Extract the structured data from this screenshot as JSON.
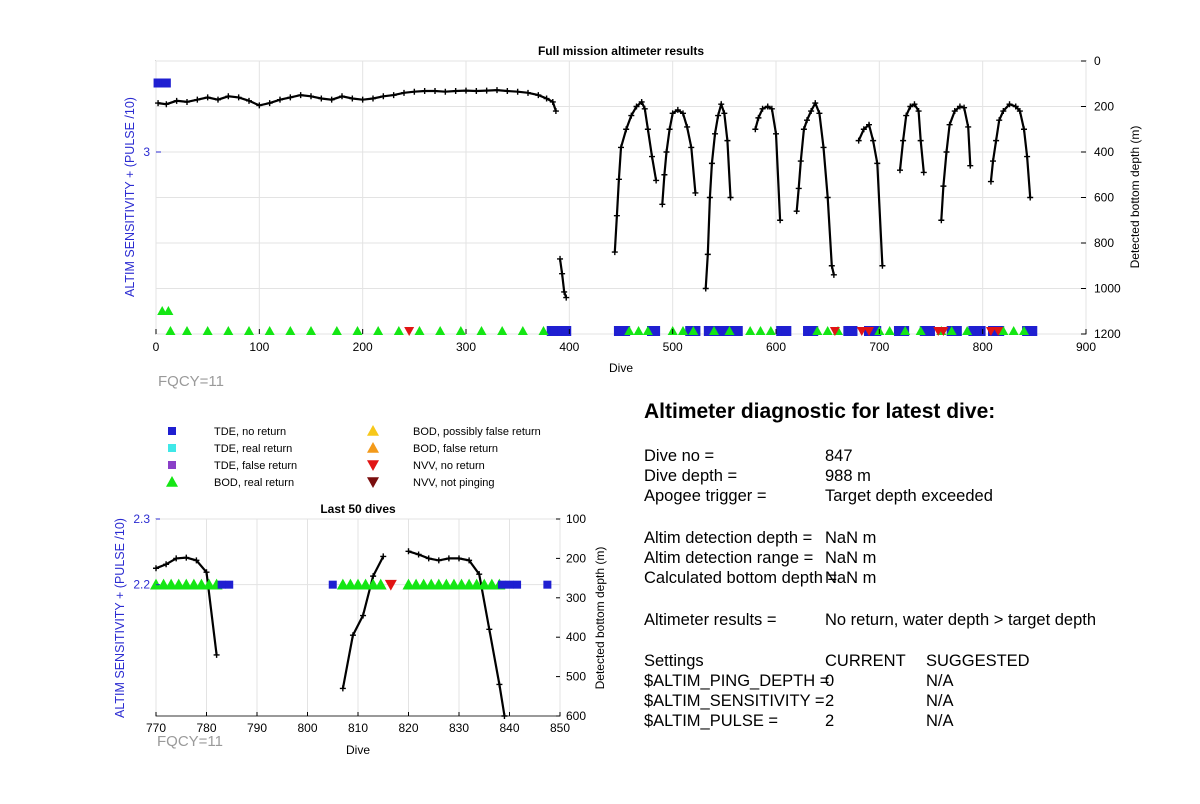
{
  "chart_data": [
    {
      "type": "line",
      "title": "Full mission altimeter results",
      "xlabel": "Dive",
      "ylabel_left": "ALTIM SENSITIVITY + (PULSE /10)",
      "ylabel_right": "Detected bottom depth (m)",
      "xlim": [
        0,
        900
      ],
      "xticks": [
        "0",
        "100",
        "200",
        "300",
        "400",
        "500",
        "600",
        "700",
        "800",
        "900"
      ],
      "yticks_left": [
        "3"
      ],
      "yticks_right": [
        "0",
        "200",
        "400",
        "600",
        "800",
        "1000",
        "1200"
      ],
      "ylim_right": [
        0,
        1200
      ],
      "grid": true,
      "footnote": "FQCY=11",
      "series": [
        {
          "name": "Detected bottom depth",
          "segments": [
            [
              [
                2,
                185
              ],
              [
                10,
                190
              ],
              [
                20,
                175
              ],
              [
                30,
                180
              ],
              [
                40,
                170
              ],
              [
                50,
                160
              ],
              [
                60,
                170
              ],
              [
                70,
                155
              ],
              [
                80,
                160
              ],
              [
                90,
                175
              ],
              [
                100,
                195
              ],
              [
                110,
                185
              ],
              [
                120,
                170
              ],
              [
                130,
                160
              ],
              [
                140,
                150
              ],
              [
                150,
                155
              ],
              [
                160,
                165
              ],
              [
                170,
                170
              ],
              [
                180,
                155
              ],
              [
                190,
                165
              ],
              [
                200,
                170
              ],
              [
                210,
                165
              ],
              [
                220,
                155
              ],
              [
                230,
                150
              ],
              [
                240,
                140
              ],
              [
                250,
                135
              ],
              [
                260,
                132
              ],
              [
                270,
                132
              ],
              [
                280,
                135
              ],
              [
                290,
                132
              ],
              [
                300,
                130
              ],
              [
                310,
                132
              ],
              [
                320,
                130
              ],
              [
                330,
                128
              ],
              [
                340,
                132
              ],
              [
                350,
                135
              ],
              [
                360,
                140
              ],
              [
                370,
                150
              ],
              [
                378,
                165
              ],
              [
                384,
                180
              ],
              [
                387,
                220
              ]
            ],
            [
              [
                391,
                870
              ],
              [
                393,
                935
              ],
              [
                395,
                1015
              ],
              [
                397,
                1040
              ]
            ],
            [
              [
                444,
                840
              ],
              [
                446,
                680
              ],
              [
                448,
                520
              ],
              [
                450,
                380
              ],
              [
                455,
                300
              ],
              [
                460,
                240
              ],
              [
                465,
                200
              ],
              [
                470,
                180
              ],
              [
                473,
                210
              ],
              [
                476,
                300
              ],
              [
                480,
                420
              ],
              [
                484,
                525
              ]
            ],
            [
              [
                490,
                630
              ],
              [
                492,
                500
              ],
              [
                494,
                400
              ],
              [
                497,
                300
              ],
              [
                500,
                230
              ],
              [
                505,
                215
              ],
              [
                510,
                230
              ],
              [
                514,
                290
              ],
              [
                518,
                380
              ],
              [
                522,
                580
              ]
            ],
            [
              [
                532,
                1000
              ],
              [
                534,
                850
              ],
              [
                536,
                600
              ],
              [
                538,
                450
              ],
              [
                541,
                320
              ],
              [
                544,
                240
              ],
              [
                547,
                190
              ],
              [
                550,
                230
              ],
              [
                553,
                350
              ],
              [
                556,
                600
              ]
            ],
            [
              [
                580,
                300
              ],
              [
                583,
                250
              ],
              [
                587,
                210
              ],
              [
                592,
                200
              ],
              [
                596,
                210
              ],
              [
                600,
                320
              ],
              [
                604,
                700
              ]
            ],
            [
              [
                620,
                660
              ],
              [
                622,
                560
              ],
              [
                624,
                440
              ],
              [
                627,
                300
              ],
              [
                630,
                260
              ],
              [
                634,
                220
              ],
              [
                638,
                185
              ],
              [
                642,
                230
              ],
              [
                646,
                380
              ],
              [
                650,
                600
              ],
              [
                654,
                900
              ],
              [
                656,
                940
              ]
            ],
            [
              [
                680,
                350
              ],
              [
                685,
                300
              ],
              [
                690,
                280
              ],
              [
                694,
                350
              ],
              [
                698,
                450
              ],
              [
                703,
                900
              ]
            ],
            [
              [
                720,
                480
              ],
              [
                723,
                350
              ],
              [
                726,
                240
              ],
              [
                730,
                200
              ],
              [
                734,
                190
              ],
              [
                738,
                220
              ],
              [
                740,
                350
              ],
              [
                743,
                490
              ]
            ],
            [
              [
                760,
                700
              ],
              [
                762,
                550
              ],
              [
                765,
                400
              ],
              [
                768,
                280
              ],
              [
                773,
                220
              ],
              [
                778,
                200
              ],
              [
                782,
                205
              ],
              [
                786,
                290
              ],
              [
                788,
                460
              ]
            ],
            [
              [
                808,
                530
              ],
              [
                810,
                440
              ],
              [
                813,
                350
              ],
              [
                816,
                260
              ],
              [
                820,
                220
              ],
              [
                826,
                190
              ],
              [
                832,
                200
              ],
              [
                836,
                220
              ],
              [
                840,
                300
              ],
              [
                843,
                420
              ],
              [
                846,
                600
              ]
            ]
          ]
        }
      ],
      "markers": [
        {
          "name": "TDE, no return",
          "color": "#1f1fd1",
          "shape": "square",
          "x": [
            2,
            5,
            8,
            10,
            383,
            387,
            393,
            397,
            448,
            454,
            480,
            483,
            517,
            522,
            535,
            540,
            549,
            558,
            563,
            605,
            610,
            631,
            636,
            670,
            674,
            690,
            697,
            719,
            724,
            744,
            749,
            770,
            775,
            791,
            798,
            810,
            816,
            843,
            848
          ]
        },
        {
          "name": "BOD, real return",
          "color": "#14e614",
          "shape": "triangle-up",
          "x": [
            14,
            30,
            50,
            70,
            90,
            110,
            130,
            150,
            175,
            195,
            215,
            235,
            255,
            275,
            295,
            315,
            335,
            355,
            375,
            458,
            467,
            476,
            500,
            510,
            520,
            540,
            555,
            575,
            585,
            595,
            640,
            650,
            660,
            700,
            710,
            725,
            740,
            760,
            770,
            785,
            820,
            830,
            840
          ]
        },
        {
          "name": "NVV, no return",
          "color": "#e11414",
          "shape": "triangle-down",
          "x": [
            245,
            657,
            683,
            690,
            757,
            762,
            808,
            815
          ]
        }
      ]
    },
    {
      "type": "line",
      "title": "Last 50 dives",
      "xlabel": "Dive",
      "ylabel_left": "ALTIM SENSITIVITY + (PULSE /10)",
      "ylabel_right": "Detected bottom depth (m)",
      "xlim": [
        770,
        850
      ],
      "ylim_left": [
        2.0,
        2.3
      ],
      "ylim_right": [
        100,
        600
      ],
      "xticks": [
        "770",
        "780",
        "790",
        "800",
        "810",
        "820",
        "830",
        "840",
        "850"
      ],
      "yticks_left": [
        "2.3",
        "2.2"
      ],
      "yticks_right": [
        "100",
        "200",
        "300",
        "400",
        "500",
        "600"
      ],
      "grid": true,
      "footnote": "FQCY=11",
      "series": [
        {
          "name": "Detected bottom depth",
          "segments": [
            [
              [
                770,
                225
              ],
              [
                772,
                215
              ],
              [
                774,
                200
              ],
              [
                776,
                198
              ],
              [
                778,
                205
              ],
              [
                780,
                235
              ],
              [
                782,
                445
              ]
            ],
            [
              [
                807,
                530
              ],
              [
                809,
                395
              ],
              [
                811,
                345
              ],
              [
                813,
                245
              ],
              [
                815,
                195
              ]
            ],
            [
              [
                820,
                182
              ],
              [
                822,
                190
              ],
              [
                824,
                200
              ],
              [
                826,
                205
              ],
              [
                828,
                200
              ],
              [
                830,
                200
              ],
              [
                832,
                205
              ],
              [
                834,
                240
              ],
              [
                836,
                380
              ],
              [
                838,
                520
              ],
              [
                839,
                600
              ]
            ]
          ]
        }
      ],
      "markers": [
        {
          "name": "BOD, real return",
          "color": "#14e614",
          "shape": "triangle-up",
          "x": [
            770,
            771.5,
            773,
            774.5,
            776,
            777.5,
            779,
            780.5,
            782,
            807,
            808.5,
            810,
            811.5,
            813,
            814.5,
            820,
            821.5,
            823,
            824.5,
            826,
            827.5,
            829,
            830.5,
            832,
            833.5,
            835,
            836.5,
            838
          ],
          "y": 2.2
        },
        {
          "name": "TDE, no return",
          "color": "#1f1fd1",
          "shape": "square",
          "x": [
            783,
            784.5,
            805,
            838.5,
            840,
            841.5,
            847.5
          ],
          "y": 2.2
        },
        {
          "name": "NVV, no return",
          "color": "#e11414",
          "shape": "triangle-down",
          "x": [
            816.5
          ],
          "y": 2.2
        }
      ]
    }
  ],
  "legend": {
    "left": [
      {
        "label": "TDE, no return",
        "color": "#1f1fd1",
        "shape": "square"
      },
      {
        "label": "TDE, real return",
        "color": "#3fe8e8",
        "shape": "square"
      },
      {
        "label": "TDE, false return",
        "color": "#8a3fc8",
        "shape": "square"
      },
      {
        "label": "BOD, real return",
        "color": "#14e614",
        "shape": "triangle-up"
      }
    ],
    "right": [
      {
        "label": "BOD, possibly false return",
        "color": "#f7c81a",
        "shape": "triangle-up"
      },
      {
        "label": "BOD, false return",
        "color": "#f39a1a",
        "shape": "triangle-up"
      },
      {
        "label": "NVV, no return",
        "color": "#e11414",
        "shape": "triangle-down"
      },
      {
        "label": "NVV, not pinging",
        "color": "#7a0e0e",
        "shape": "triangle-down"
      }
    ]
  },
  "diagnostic": {
    "title": "Altimeter diagnostic for latest dive:",
    "dive_no_label": "Dive no =",
    "dive_no": "847",
    "dive_depth_label": "Dive depth =",
    "dive_depth": "988 m",
    "apogee_label": "Apogee trigger =",
    "apogee": "Target depth exceeded",
    "det_depth_label": "Altim detection depth =",
    "det_depth": "NaN m",
    "det_range_label": "Altim detection range =",
    "det_range": "NaN m",
    "calc_depth_label": "Calculated bottom depth =",
    "calc_depth": "NaN m",
    "results_label": "Altimeter results =",
    "results": "No return, water depth > target depth",
    "settings_label": "Settings",
    "current_label": "CURRENT",
    "suggested_label": "SUGGESTED",
    "ping_depth_label": "$ALTIM_PING_DEPTH =",
    "ping_depth_current": "0",
    "ping_depth_suggested": "N/A",
    "sensitivity_label": "$ALTIM_SENSITIVITY =",
    "sensitivity_current": "2",
    "sensitivity_suggested": "N/A",
    "pulse_label": "$ALTIM_PULSE =",
    "pulse_current": "2",
    "pulse_suggested": "N/A"
  }
}
